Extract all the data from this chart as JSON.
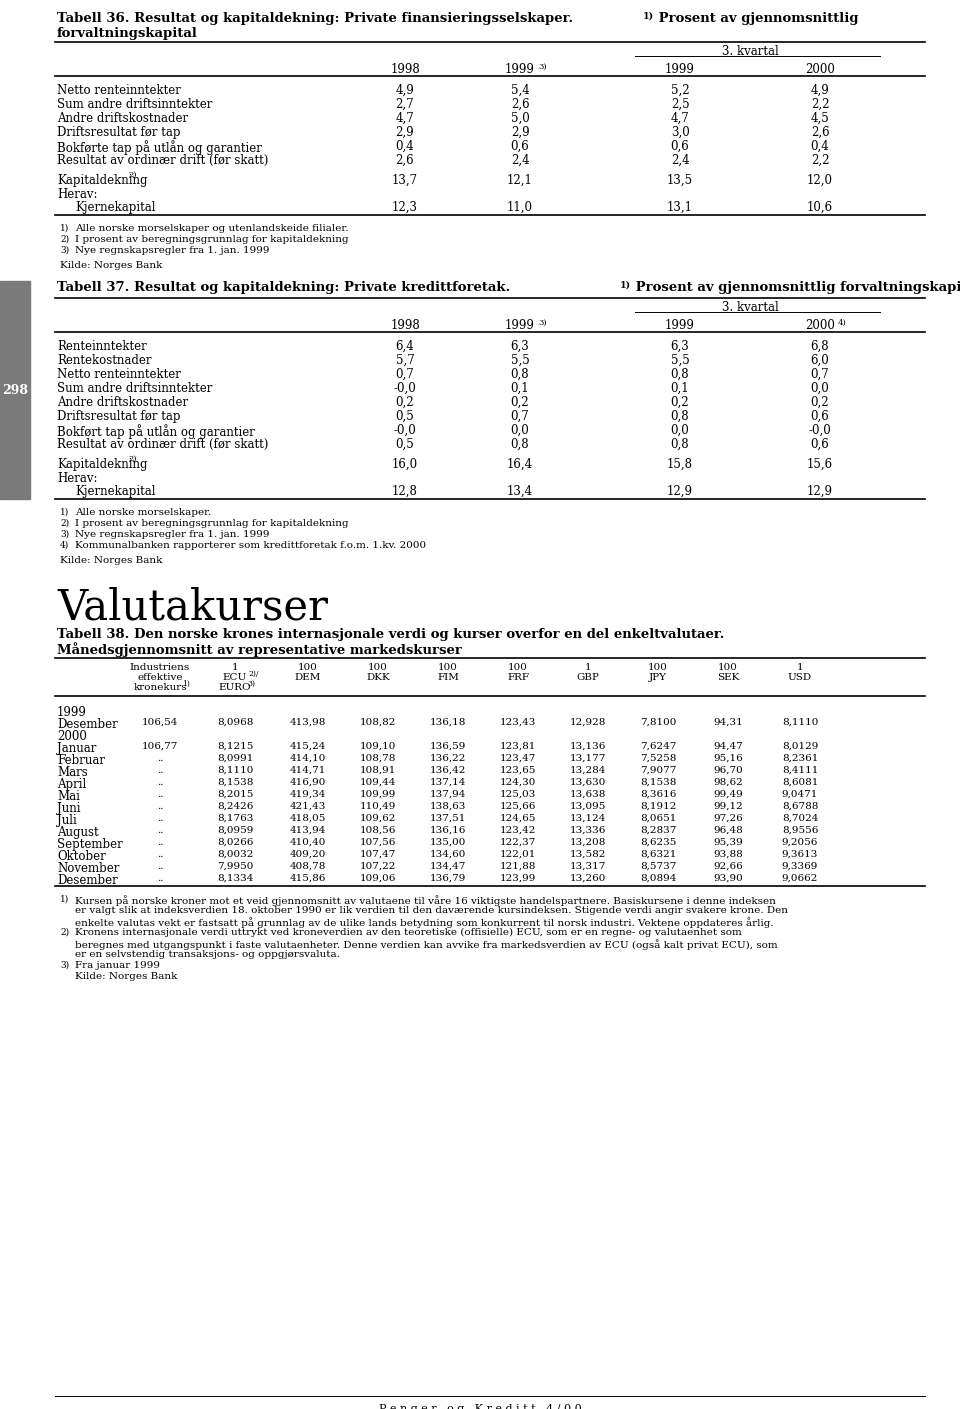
{
  "t36_rows": [
    [
      "Netto renteinntekter",
      "4,9",
      "5,4",
      "5,2",
      "4,9"
    ],
    [
      "Sum andre driftsinntekter",
      "2,7",
      "2,6",
      "2,5",
      "2,2"
    ],
    [
      "Andre driftskostnader",
      "4,7",
      "5,0",
      "4,7",
      "4,5"
    ],
    [
      "Driftsresultat før tap",
      "2,9",
      "2,9",
      "3,0",
      "2,6"
    ],
    [
      "Bokførte tap på utlån og garantier",
      "0,4",
      "0,6",
      "0,6",
      "0,4"
    ],
    [
      "Resultat av ordinær drift (før skatt)",
      "2,6",
      "2,4",
      "2,4",
      "2,2"
    ]
  ],
  "t36_rows2": [
    [
      "Kapitaldekning",
      "13,7",
      "12,1",
      "13,5",
      "12,0"
    ],
    [
      "Herav:",
      "",
      "",
      "",
      ""
    ],
    [
      "    Kjernekapital",
      "12,3",
      "11,0",
      "13,1",
      "10,6"
    ]
  ],
  "t37_rows": [
    [
      "Renteinntekter",
      "6,4",
      "6,3",
      "6,3",
      "6,8"
    ],
    [
      "Rentekostnader",
      "5,7",
      "5,5",
      "5,5",
      "6,0"
    ],
    [
      "Netto renteinntekter",
      "0,7",
      "0,8",
      "0,8",
      "0,7"
    ],
    [
      "Sum andre driftsinntekter",
      "-0,0",
      "0,1",
      "0,1",
      "0,0"
    ],
    [
      "Andre driftskostnader",
      "0,2",
      "0,2",
      "0,2",
      "0,2"
    ],
    [
      "Driftsresultat før tap",
      "0,5",
      "0,7",
      "0,8",
      "0,6"
    ],
    [
      "Bokført tap på utlån og garantier",
      "-0,0",
      "0,0",
      "0,0",
      "-0,0"
    ],
    [
      "Resultat av ordinær drift (før skatt)",
      "0,5",
      "0,8",
      "0,8",
      "0,6"
    ]
  ],
  "t37_rows2": [
    [
      "Kapitaldekning",
      "16,0",
      "16,4",
      "15,8",
      "15,6"
    ],
    [
      "Herav:",
      "",
      "",
      "",
      ""
    ],
    [
      "    Kjernekapital",
      "12,8",
      "13,4",
      "12,9",
      "12,9"
    ]
  ],
  "t38_rows": [
    [
      "1999",
      "",
      "",
      "",
      "",
      "",
      "",
      "",
      "",
      "",
      ""
    ],
    [
      "Desember",
      "106,54",
      "8,0968",
      "413,98",
      "108,82",
      "136,18",
      "123,43",
      "12,928",
      "7,8100",
      "94,31",
      "8,1110"
    ],
    [
      "2000",
      "",
      "",
      "",
      "",
      "",
      "",
      "",
      "",
      "",
      ""
    ],
    [
      "Januar",
      "106,77",
      "8,1215",
      "415,24",
      "109,10",
      "136,59",
      "123,81",
      "13,136",
      "7,6247",
      "94,47",
      "8,0129"
    ],
    [
      "Februar",
      "..",
      "8,0991",
      "414,10",
      "108,78",
      "136,22",
      "123,47",
      "13,177",
      "7,5258",
      "95,16",
      "8,2361"
    ],
    [
      "Mars",
      "..",
      "8,1110",
      "414,71",
      "108,91",
      "136,42",
      "123,65",
      "13,284",
      "7,9077",
      "96,70",
      "8,4111"
    ],
    [
      "April",
      "..",
      "8,1538",
      "416,90",
      "109,44",
      "137,14",
      "124,30",
      "13,630",
      "8,1538",
      "98,62",
      "8,6081"
    ],
    [
      "Mai",
      "..",
      "8,2015",
      "419,34",
      "109,99",
      "137,94",
      "125,03",
      "13,638",
      "8,3616",
      "99,49",
      "9,0471"
    ],
    [
      "Juni",
      "..",
      "8,2426",
      "421,43",
      "110,49",
      "138,63",
      "125,66",
      "13,095",
      "8,1912",
      "99,12",
      "8,6788"
    ],
    [
      "Juli",
      "..",
      "8,1763",
      "418,05",
      "109,62",
      "137,51",
      "124,65",
      "13,124",
      "8,0651",
      "97,26",
      "8,7024"
    ],
    [
      "August",
      "..",
      "8,0959",
      "413,94",
      "108,56",
      "136,16",
      "123,42",
      "13,336",
      "8,2837",
      "96,48",
      "8,9556"
    ],
    [
      "September",
      "..",
      "8,0266",
      "410,40",
      "107,56",
      "135,00",
      "122,37",
      "13,208",
      "8,6235",
      "95,39",
      "9,2056"
    ],
    [
      "Oktober",
      "..",
      "8,0032",
      "409,20",
      "107,47",
      "134,60",
      "122,01",
      "13,582",
      "8,6321",
      "93,88",
      "9,3613"
    ],
    [
      "November",
      "..",
      "7,9950",
      "408,78",
      "107,22",
      "134,47",
      "121,88",
      "13,317",
      "8,5737",
      "92,66",
      "9,3369"
    ],
    [
      "Desember",
      "..",
      "8,1334",
      "415,86",
      "109,06",
      "136,79",
      "123,99",
      "13,260",
      "8,0894",
      "93,90",
      "9,0662"
    ]
  ],
  "page_num": "298"
}
